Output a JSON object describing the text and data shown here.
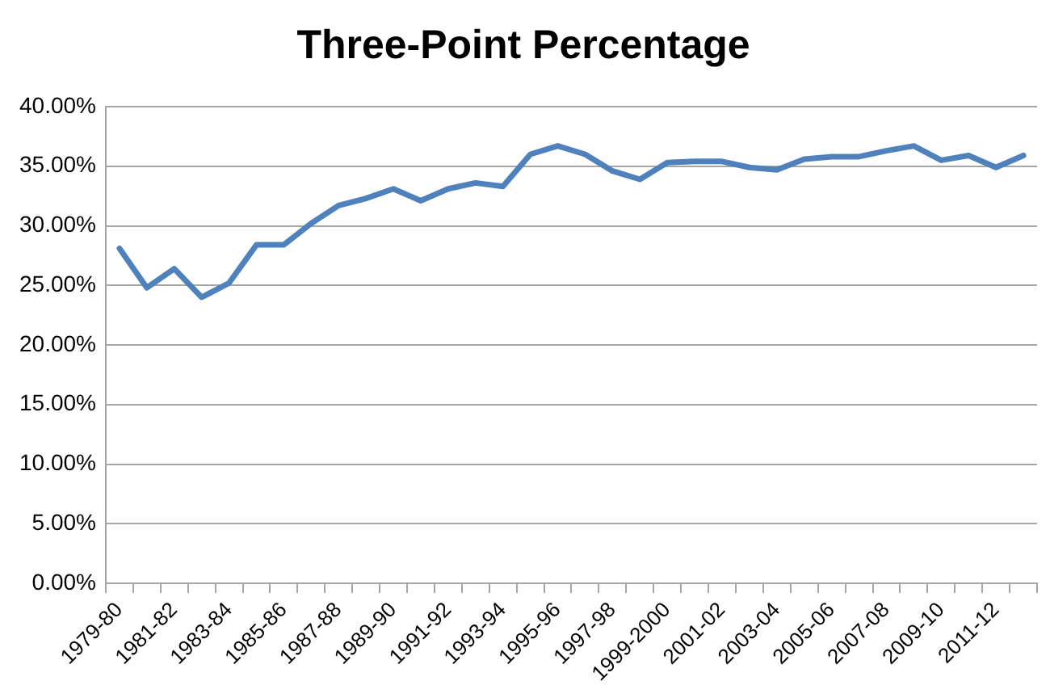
{
  "chart_data": {
    "type": "line",
    "title": "Three-Point Percentage",
    "categories": [
      "1979-80",
      null,
      "1981-82",
      null,
      "1983-84",
      null,
      "1985-86",
      null,
      "1987-88",
      null,
      "1989-90",
      null,
      "1991-92",
      null,
      "1993-94",
      null,
      "1995-96",
      null,
      "1997-98",
      null,
      "1999-2000",
      null,
      "2001-02",
      null,
      "2003-04",
      null,
      "2005-06",
      null,
      "2007-08",
      null,
      "2009-10",
      null,
      "2011-12",
      null
    ],
    "series": [
      {
        "color": "#4f81bd",
        "values": [
          28.1,
          24.8,
          26.4,
          24.0,
          25.2,
          28.4,
          28.4,
          30.2,
          31.7,
          32.3,
          33.1,
          32.1,
          33.1,
          33.6,
          33.3,
          36.0,
          36.7,
          36.0,
          34.6,
          33.9,
          35.3,
          35.4,
          35.4,
          34.9,
          34.7,
          35.6,
          35.8,
          35.8,
          36.3,
          36.7,
          35.5,
          35.9,
          34.9,
          35.9
        ]
      }
    ],
    "ylim": [
      0,
      40
    ],
    "yticks": [
      {
        "value": 0,
        "label": "0.00%"
      },
      {
        "value": 5,
        "label": "5.00%"
      },
      {
        "value": 10,
        "label": "10.00%"
      },
      {
        "value": 15,
        "label": "15.00%"
      },
      {
        "value": 20,
        "label": "20.00%"
      },
      {
        "value": 25,
        "label": "25.00%"
      },
      {
        "value": 30,
        "label": "30.00%"
      },
      {
        "value": 35,
        "label": "35.00%"
      },
      {
        "value": 40,
        "label": "40.00%"
      }
    ],
    "grid": "y",
    "legend": false,
    "marker": "none",
    "line_style": "solid"
  }
}
